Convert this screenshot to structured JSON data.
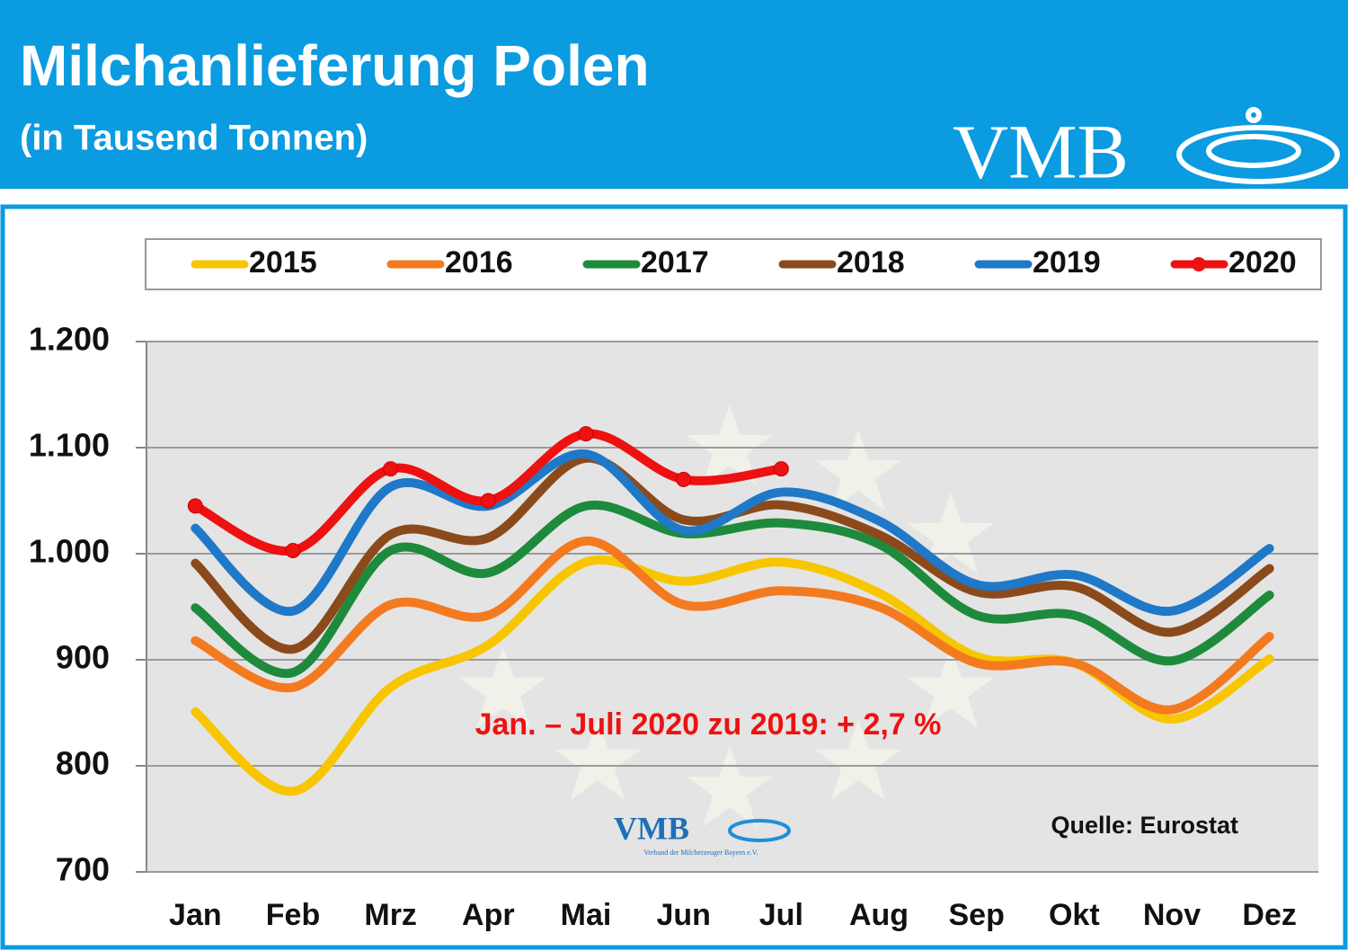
{
  "chart_data": {
    "type": "line",
    "title": "Milchanlieferung Polen",
    "subtitle": "(in Tausend Tonnen)",
    "logo": "VMB",
    "watermark": "VMB",
    "watermark_subtitle": "Verband der Milcherzeuger Bayern e.V.",
    "annotation": "Jan. – Juli 2020 zu 2019: + 2,7 %",
    "source": "Quelle: Eurostat",
    "categories": [
      "Jan",
      "Feb",
      "Mrz",
      "Apr",
      "Mai",
      "Jun",
      "Jul",
      "Aug",
      "Sep",
      "Okt",
      "Nov",
      "Dez"
    ],
    "series": [
      {
        "name": "2015",
        "color": "#f7c600",
        "values": [
          851,
          776,
          874,
          914,
          992,
          974,
          992,
          963,
          903,
          897,
          844,
          901
        ]
      },
      {
        "name": "2016",
        "color": "#f47a20",
        "values": [
          918,
          874,
          952,
          942,
          1012,
          952,
          965,
          950,
          897,
          897,
          853,
          922
        ]
      },
      {
        "name": "2017",
        "color": "#1e8a3c",
        "values": [
          949,
          888,
          1003,
          982,
          1045,
          1019,
          1029,
          1009,
          942,
          942,
          899,
          961
        ]
      },
      {
        "name": "2018",
        "color": "#8b4a1c",
        "values": [
          991,
          910,
          1018,
          1015,
          1090,
          1032,
          1046,
          1018,
          964,
          969,
          926,
          986
        ]
      },
      {
        "name": "2019",
        "color": "#1f78c8",
        "values": [
          1024,
          946,
          1063,
          1045,
          1094,
          1022,
          1058,
          1031,
          971,
          980,
          946,
          1005
        ]
      },
      {
        "name": "2020",
        "color": "#ee1111",
        "marker": "circle",
        "values": [
          1045,
          1003,
          1080,
          1050,
          1113,
          1070,
          1080,
          null,
          null,
          null,
          null,
          null
        ]
      }
    ],
    "ylim": [
      700,
      1200
    ],
    "yticks": [
      700,
      800,
      900,
      {
        "value": 1000,
        "label": "1.000"
      },
      {
        "value": 1100,
        "label": "1.100"
      },
      {
        "value": 1200,
        "label": "1.200"
      }
    ],
    "grid": true,
    "legend": "top"
  }
}
